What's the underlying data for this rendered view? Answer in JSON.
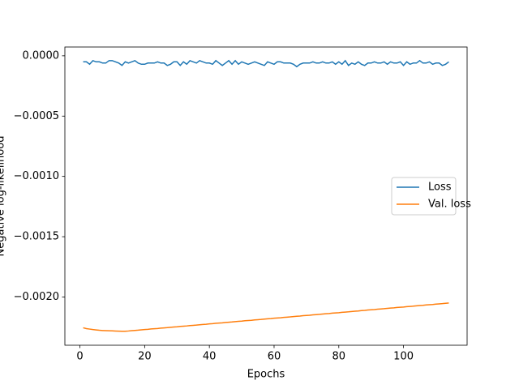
{
  "chart_data": {
    "type": "line",
    "xlabel": "Epochs",
    "ylabel": "Negative log-likelihood",
    "x": [
      1,
      2,
      3,
      4,
      5,
      6,
      7,
      8,
      9,
      10,
      11,
      12,
      13,
      14,
      15,
      16,
      17,
      18,
      19,
      20,
      21,
      22,
      23,
      24,
      25,
      26,
      27,
      28,
      29,
      30,
      31,
      32,
      33,
      34,
      35,
      36,
      37,
      38,
      39,
      40,
      41,
      42,
      43,
      44,
      45,
      46,
      47,
      48,
      49,
      50,
      51,
      52,
      53,
      54,
      55,
      56,
      57,
      58,
      59,
      60,
      61,
      62,
      63,
      64,
      65,
      66,
      67,
      68,
      69,
      70,
      71,
      72,
      73,
      74,
      75,
      76,
      77,
      78,
      79,
      80,
      81,
      82,
      83,
      84,
      85,
      86,
      87,
      88,
      89,
      90,
      91,
      92,
      93,
      94,
      95,
      96,
      97,
      98,
      99,
      100,
      101,
      102,
      103,
      104,
      105,
      106,
      107,
      108,
      109,
      110,
      111,
      112,
      113,
      114
    ],
    "series": [
      {
        "name": "Loss",
        "color": "#1f77b4",
        "values": [
          -5e-05,
          -5e-05,
          -7e-05,
          -4e-05,
          -5e-05,
          -5e-05,
          -6e-05,
          -6e-05,
          -4e-05,
          -4e-05,
          -5e-05,
          -6e-05,
          -8e-05,
          -5e-05,
          -6e-05,
          -5e-05,
          -4e-05,
          -6e-05,
          -7e-05,
          -7e-05,
          -6e-05,
          -6e-05,
          -6e-05,
          -5e-05,
          -6e-05,
          -6e-05,
          -8e-05,
          -7e-05,
          -5e-05,
          -5e-05,
          -8e-05,
          -5e-05,
          -7e-05,
          -4e-05,
          -5e-05,
          -6e-05,
          -4e-05,
          -5e-05,
          -6e-05,
          -6e-05,
          -7e-05,
          -4e-05,
          -6e-05,
          -8e-05,
          -6e-05,
          -4e-05,
          -7e-05,
          -4e-05,
          -7e-05,
          -5e-05,
          -6e-05,
          -7e-05,
          -6e-05,
          -5e-05,
          -6e-05,
          -7e-05,
          -8e-05,
          -5e-05,
          -6e-05,
          -7e-05,
          -5e-05,
          -5e-05,
          -6e-05,
          -6e-05,
          -6e-05,
          -7e-05,
          -9e-05,
          -7e-05,
          -6e-05,
          -6e-05,
          -6e-05,
          -5e-05,
          -6e-05,
          -6e-05,
          -5e-05,
          -6e-05,
          -6e-05,
          -5e-05,
          -7e-05,
          -5e-05,
          -7e-05,
          -4e-05,
          -8e-05,
          -6e-05,
          -7e-05,
          -5e-05,
          -7e-05,
          -8e-05,
          -6e-05,
          -6e-05,
          -5e-05,
          -6e-05,
          -6e-05,
          -5e-05,
          -7e-05,
          -5e-05,
          -6e-05,
          -6e-05,
          -5e-05,
          -8e-05,
          -5e-05,
          -7e-05,
          -6e-05,
          -6e-05,
          -4e-05,
          -6e-05,
          -6e-05,
          -5e-05,
          -7e-05,
          -6e-05,
          -6e-05,
          -8e-05,
          -7e-05,
          -5e-05
        ]
      },
      {
        "name": "Val. loss",
        "color": "#ff7f0e",
        "values": [
          -0.002255,
          -0.002262,
          -0.002266,
          -0.00227,
          -0.002273,
          -0.002276,
          -0.002278,
          -0.002279,
          -0.00228,
          -0.002281,
          -0.002282,
          -0.002283,
          -0.002284,
          -0.002284,
          -0.002282,
          -0.002279,
          -0.002277,
          -0.002275,
          -0.002272,
          -0.00227,
          -0.002268,
          -0.002265,
          -0.002263,
          -0.002261,
          -0.002258,
          -0.002256,
          -0.002254,
          -0.002251,
          -0.002249,
          -0.002247,
          -0.002244,
          -0.002242,
          -0.00224,
          -0.002237,
          -0.002235,
          -0.002233,
          -0.00223,
          -0.002228,
          -0.002226,
          -0.002223,
          -0.002221,
          -0.002218,
          -0.002216,
          -0.002214,
          -0.002211,
          -0.002209,
          -0.002207,
          -0.002204,
          -0.002202,
          -0.0022,
          -0.002197,
          -0.002195,
          -0.002193,
          -0.00219,
          -0.002188,
          -0.002186,
          -0.002183,
          -0.002181,
          -0.002179,
          -0.002176,
          -0.002174,
          -0.002172,
          -0.002169,
          -0.002167,
          -0.002165,
          -0.002162,
          -0.00216,
          -0.002158,
          -0.002155,
          -0.002153,
          -0.002151,
          -0.002148,
          -0.002146,
          -0.002144,
          -0.002141,
          -0.002139,
          -0.002137,
          -0.002134,
          -0.002132,
          -0.00213,
          -0.002127,
          -0.002125,
          -0.002123,
          -0.00212,
          -0.002118,
          -0.002116,
          -0.002113,
          -0.002111,
          -0.002108,
          -0.002106,
          -0.002104,
          -0.002101,
          -0.002099,
          -0.002097,
          -0.002094,
          -0.002092,
          -0.00209,
          -0.002087,
          -0.002085,
          -0.002083,
          -0.00208,
          -0.002078,
          -0.002076,
          -0.002073,
          -0.002071,
          -0.002069,
          -0.002066,
          -0.002064,
          -0.002062,
          -0.002059,
          -0.002057,
          -0.002055,
          -0.002052,
          -0.00205
        ]
      }
    ],
    "xlim": [
      -4.65,
      119.65
    ],
    "ylim": [
      -0.0024,
      7.3e-05
    ],
    "xticks": [
      0,
      20,
      40,
      60,
      80,
      100
    ],
    "yticks": [
      {
        "value": -0.002,
        "label": "−0.0020"
      },
      {
        "value": -0.0015,
        "label": "−0.0015"
      },
      {
        "value": -0.001,
        "label": "−0.0010"
      },
      {
        "value": -0.0005,
        "label": "−0.0005"
      },
      {
        "value": 0,
        "label": "0.0000"
      }
    ],
    "grid": false,
    "legend": "center right"
  }
}
